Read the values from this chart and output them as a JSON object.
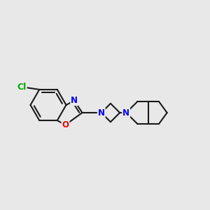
{
  "bg_color": "#e8e8e8",
  "bond_color": "#1a1a1a",
  "N_color": "#0000ee",
  "O_color": "#ee0000",
  "Cl_color": "#00aa00",
  "bond_width": 1.5,
  "figsize": [
    3.0,
    3.0
  ],
  "dpi": 100,
  "xlim": [
    0,
    10
  ],
  "ylim": [
    0,
    10
  ]
}
